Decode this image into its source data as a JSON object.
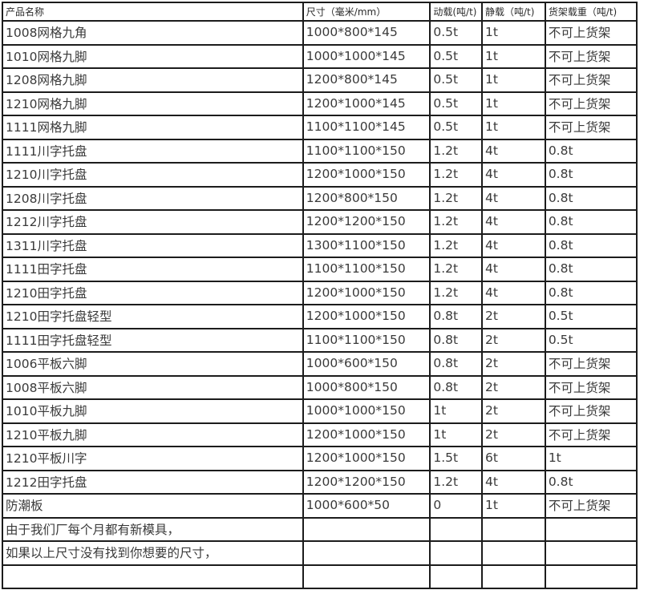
{
  "table": {
    "headers": [
      "产品名称",
      "尺寸（毫米/mm）",
      "动载(吨/t)",
      "静载（吨/t)",
      "货架载重（吨/t)"
    ],
    "rows": [
      {
        "cells": [
          "1008网格九角",
          "1000*800*145",
          "0.5t",
          "1t",
          "不可上货架"
        ],
        "weight": "normal"
      },
      {
        "cells": [
          "1010网格九脚",
          "1000*1000*145",
          "0.5t",
          "1t",
          "不可上货架"
        ],
        "weight": "normal"
      },
      {
        "cells": [
          "1208网格九脚",
          "1200*800*145",
          "0.5t",
          "1t",
          "不可上货架"
        ],
        "weight": "normal"
      },
      {
        "cells": [
          "1210网格九脚",
          "1200*1000*145",
          "0.5t",
          "1t",
          "不可上货架"
        ],
        "weight": "light"
      },
      {
        "cells": [
          "1111网格九脚",
          "1100*1100*145",
          "0.5t",
          "1t",
          "不可上货架"
        ],
        "weight": "light"
      },
      {
        "cells": [
          "1111川字托盘",
          "1100*1100*150",
          "1.2t",
          "4t",
          "0.8t"
        ],
        "weight": "normal"
      },
      {
        "cells": [
          "1210川字托盘",
          "1200*1000*150",
          "1.2t",
          "4t",
          "0.8t"
        ],
        "weight": "bold"
      },
      {
        "cells": [
          "1208川字托盘",
          "1200*800*150",
          "1.2t",
          "4t",
          "0.8t"
        ],
        "weight": "light"
      },
      {
        "cells": [
          "1212川字托盘",
          "1200*1200*150",
          "1.2t",
          "4t",
          "0.8t"
        ],
        "weight": "bold"
      },
      {
        "cells": [
          "1311川字托盘",
          "1300*1100*150",
          "1.2t",
          "4t",
          "0.8t"
        ],
        "weight": "bold"
      },
      {
        "cells": [
          "1111田字托盘",
          "1100*1100*150",
          "1.2t",
          "4t",
          "0.8t"
        ],
        "weight": "light"
      },
      {
        "cells": [
          "1210田字托盘",
          "1200*1000*150",
          "1.2t",
          "4t",
          "0.8t"
        ],
        "weight": "bold"
      },
      {
        "cells": [
          "1210田字托盘轻型",
          "1200*1000*150",
          "0.8t",
          "2t",
          "0.5t"
        ],
        "weight": "bold"
      },
      {
        "cells": [
          "1111田字托盘轻型",
          "1100*1100*150",
          "0.8t",
          "2t",
          "0.5t"
        ],
        "weight": "normal"
      },
      {
        "cells": [
          "1006平板六脚",
          "1000*600*150",
          "0.8t",
          "2t",
          "不可上货架"
        ],
        "weight": "light"
      },
      {
        "cells": [
          "1008平板六脚",
          "1000*800*150",
          "0.8t",
          "2t",
          "不可上货架"
        ],
        "weight": "bold"
      },
      {
        "cells": [
          "1010平板九脚",
          "1000*1000*150",
          "1t",
          "2t",
          "不可上货架"
        ],
        "weight": "normal"
      },
      {
        "cells": [
          "1210平板九脚",
          "1200*1000*150",
          "1t",
          "2t",
          "不可上货架"
        ],
        "weight": "bold"
      },
      {
        "cells": [
          "1210平板川字",
          "1200*1000*150",
          "1.5t",
          "6t",
          "1t"
        ],
        "weight": "normal"
      },
      {
        "cells": [
          "1212田字托盘",
          "1200*1200*150",
          "1.2t",
          "4t",
          "0.8t"
        ],
        "weight": "bold"
      },
      {
        "cells": [
          "防潮板",
          "1000*600*50",
          "0",
          "1t",
          "不可上货架"
        ],
        "weight": "normal"
      },
      {
        "cells": [
          "由于我们厂每个月都有新模具，",
          "",
          "",
          "",
          ""
        ],
        "weight": "normal"
      },
      {
        "cells": [
          "如果以上尺寸没有找到你想要的尺寸，",
          "",
          "",
          "",
          ""
        ],
        "weight": "normal"
      },
      {
        "cells": [
          "",
          "",
          "",
          "",
          ""
        ],
        "weight": "normal"
      }
    ]
  },
  "colors": {
    "border": "#1c1c1c",
    "text_normal": "#3a3a3a",
    "text_bold": "#000000",
    "text_light": "#6f6f6f",
    "background": "#ffffff"
  }
}
